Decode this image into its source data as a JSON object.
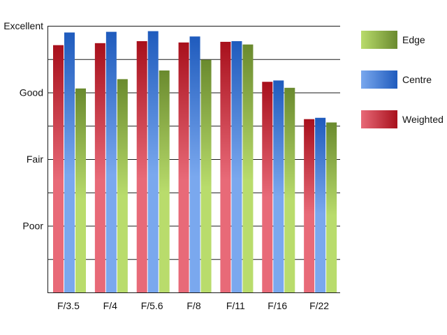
{
  "chart_data": {
    "type": "bar",
    "categories": [
      "F/3.5",
      "F/4",
      "F/5.6",
      "F/8",
      "F/11",
      "F/16",
      "F/22"
    ],
    "series": [
      {
        "name": "Weighted",
        "values": [
          3.71,
          3.74,
          3.77,
          3.75,
          3.76,
          3.16,
          2.6
        ],
        "gradient": [
          "#e86a78",
          "#a8101c"
        ]
      },
      {
        "name": "Centre",
        "values": [
          3.9,
          3.91,
          3.92,
          3.84,
          3.77,
          3.18,
          2.62
        ],
        "gradient": [
          "#7aa8ee",
          "#1f5bbd"
        ]
      },
      {
        "name": "Edge",
        "values": [
          3.06,
          3.2,
          3.33,
          3.49,
          3.72,
          3.07,
          2.55
        ],
        "gradient": [
          "#b9dc6c",
          "#6a8a2e"
        ]
      }
    ],
    "y_tick_labels": [
      {
        "value": 1,
        "label": "Poor"
      },
      {
        "value": 2,
        "label": "Fair"
      },
      {
        "value": 3,
        "label": "Good"
      },
      {
        "value": 4,
        "label": "Excellent"
      }
    ],
    "ylim": [
      0,
      4
    ],
    "grid": true,
    "legend_position": "right",
    "legend_order": [
      "Edge",
      "Centre",
      "Weighted"
    ]
  }
}
